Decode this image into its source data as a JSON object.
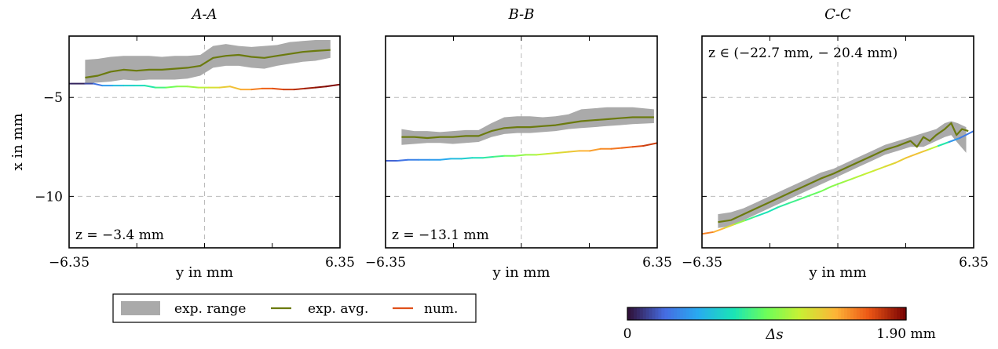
{
  "chart_data": [
    {
      "type": "line",
      "title": "A-A",
      "xlabel": "y in mm",
      "ylabel": "x in mm",
      "annotation": "z = −3.4 mm",
      "xlim": [
        -6.35,
        6.35
      ],
      "ylim": [
        -12.6,
        -1.9
      ],
      "xticks": [
        -6.35,
        6.35
      ],
      "xtick_labels": [
        "−6.35",
        "6.35"
      ],
      "yticks": [
        -5,
        -10
      ],
      "ytick_labels": [
        "−5",
        "−10"
      ],
      "grid": true,
      "series": [
        {
          "name": "exp. range",
          "kind": "band",
          "color": "#aaaaaa",
          "x": [
            -5.6,
            -5.0,
            -4.4,
            -3.8,
            -3.2,
            -2.6,
            -2.0,
            -1.4,
            -0.8,
            -0.2,
            0.4,
            1.0,
            1.6,
            2.2,
            2.8,
            3.4,
            4.0,
            4.6,
            5.2,
            5.9
          ],
          "upper": [
            -3.1,
            -3.05,
            -2.95,
            -2.9,
            -2.9,
            -2.9,
            -2.95,
            -2.9,
            -2.9,
            -2.85,
            -2.4,
            -2.3,
            -2.4,
            -2.45,
            -2.4,
            -2.35,
            -2.2,
            -2.15,
            -2.1,
            -2.1
          ],
          "lower": [
            -4.3,
            -4.25,
            -4.2,
            -4.1,
            -4.15,
            -4.1,
            -4.1,
            -4.1,
            -4.05,
            -3.9,
            -3.5,
            -3.4,
            -3.4,
            -3.5,
            -3.55,
            -3.4,
            -3.3,
            -3.2,
            -3.15,
            -3.0
          ]
        },
        {
          "name": "exp. avg.",
          "kind": "line",
          "color": "#6b7a0e",
          "x": [
            -5.6,
            -5.0,
            -4.4,
            -3.8,
            -3.2,
            -2.6,
            -2.0,
            -1.4,
            -0.8,
            -0.2,
            0.4,
            1.0,
            1.6,
            2.2,
            2.8,
            3.4,
            4.0,
            4.6,
            5.2,
            5.9
          ],
          "y": [
            -4.0,
            -3.9,
            -3.7,
            -3.6,
            -3.65,
            -3.6,
            -3.6,
            -3.55,
            -3.5,
            -3.4,
            -3.0,
            -2.9,
            -2.85,
            -2.95,
            -3.0,
            -2.9,
            -2.8,
            -2.7,
            -2.65,
            -2.6
          ]
        },
        {
          "name": "num.",
          "kind": "colored",
          "x": [
            -6.35,
            -5.6,
            -5.2,
            -4.8,
            -4.3,
            -3.8,
            -3.3,
            -2.8,
            -2.3,
            -1.8,
            -1.3,
            -0.8,
            -0.3,
            0.2,
            0.7,
            1.2,
            1.7,
            2.2,
            2.7,
            3.2,
            3.7,
            4.2,
            4.7,
            5.2,
            5.7,
            6.35
          ],
          "y": [
            -4.3,
            -4.3,
            -4.3,
            -4.4,
            -4.4,
            -4.4,
            -4.4,
            -4.4,
            -4.5,
            -4.5,
            -4.45,
            -4.45,
            -4.5,
            -4.5,
            -4.5,
            -4.45,
            -4.6,
            -4.6,
            -4.55,
            -4.55,
            -4.6,
            -4.6,
            -4.55,
            -4.5,
            -4.45,
            -4.35
          ],
          "s": [
            0.0,
            0.1,
            0.2,
            0.35,
            0.5,
            0.6,
            0.65,
            0.7,
            0.8,
            0.9,
            1.0,
            1.05,
            1.1,
            1.2,
            1.3,
            1.35,
            1.4,
            1.5,
            1.6,
            1.65,
            1.7,
            1.75,
            1.8,
            1.85,
            1.88,
            1.9
          ]
        }
      ]
    },
    {
      "type": "line",
      "title": "B-B",
      "xlabel": "y in mm",
      "ylabel": "",
      "annotation": "z = −13.1 mm",
      "xlim": [
        -6.35,
        6.35
      ],
      "ylim": [
        -12.6,
        -1.9
      ],
      "xticks": [
        -6.35,
        6.35
      ],
      "xtick_labels": [
        "−6.35",
        "6.35"
      ],
      "yticks": [
        -5,
        -10
      ],
      "ytick_labels": [
        "",
        ""
      ],
      "grid": true,
      "series": [
        {
          "name": "exp. range",
          "kind": "band",
          "color": "#aaaaaa",
          "x": [
            -5.6,
            -5.0,
            -4.4,
            -3.8,
            -3.2,
            -2.6,
            -2.0,
            -1.4,
            -0.8,
            -0.2,
            0.4,
            1.0,
            1.6,
            2.2,
            2.8,
            3.4,
            4.0,
            4.6,
            5.2,
            6.2
          ],
          "upper": [
            -6.6,
            -6.7,
            -6.7,
            -6.75,
            -6.7,
            -6.65,
            -6.65,
            -6.3,
            -6.0,
            -5.95,
            -5.95,
            -6.0,
            -5.95,
            -5.85,
            -5.6,
            -5.55,
            -5.5,
            -5.5,
            -5.5,
            -5.6
          ],
          "lower": [
            -7.4,
            -7.35,
            -7.3,
            -7.3,
            -7.35,
            -7.3,
            -7.25,
            -7.0,
            -6.85,
            -6.8,
            -6.8,
            -6.75,
            -6.7,
            -6.6,
            -6.55,
            -6.5,
            -6.45,
            -6.4,
            -6.35,
            -6.3
          ]
        },
        {
          "name": "exp. avg.",
          "kind": "line",
          "color": "#6b7a0e",
          "x": [
            -5.6,
            -5.0,
            -4.4,
            -3.8,
            -3.2,
            -2.6,
            -2.0,
            -1.4,
            -0.8,
            -0.2,
            0.4,
            1.0,
            1.6,
            2.2,
            2.8,
            3.4,
            4.0,
            4.6,
            5.2,
            6.2
          ],
          "y": [
            -7.0,
            -7.0,
            -7.05,
            -7.0,
            -7.0,
            -6.95,
            -6.95,
            -6.7,
            -6.55,
            -6.5,
            -6.5,
            -6.45,
            -6.4,
            -6.3,
            -6.2,
            -6.15,
            -6.1,
            -6.05,
            -6.0,
            -6.0
          ]
        },
        {
          "name": "num.",
          "kind": "colored",
          "x": [
            -6.35,
            -5.8,
            -5.3,
            -4.8,
            -4.3,
            -3.8,
            -3.3,
            -2.8,
            -2.3,
            -1.8,
            -1.3,
            -0.8,
            -0.3,
            0.2,
            0.7,
            1.2,
            1.7,
            2.2,
            2.7,
            3.2,
            3.7,
            4.2,
            4.7,
            5.2,
            5.7,
            6.35
          ],
          "y": [
            -8.2,
            -8.2,
            -8.15,
            -8.15,
            -8.15,
            -8.15,
            -8.1,
            -8.1,
            -8.05,
            -8.05,
            -8.0,
            -7.95,
            -7.95,
            -7.9,
            -7.9,
            -7.85,
            -7.8,
            -7.75,
            -7.7,
            -7.7,
            -7.6,
            -7.6,
            -7.55,
            -7.5,
            -7.45,
            -7.3
          ],
          "s": [
            0.2,
            0.25,
            0.3,
            0.35,
            0.4,
            0.45,
            0.5,
            0.6,
            0.65,
            0.75,
            0.8,
            0.9,
            1.0,
            1.05,
            1.1,
            1.2,
            1.25,
            1.3,
            1.4,
            1.45,
            1.5,
            1.55,
            1.6,
            1.65,
            1.7,
            1.75
          ]
        }
      ]
    },
    {
      "type": "line",
      "title": "C-C",
      "xlabel": "y in mm",
      "ylabel": "",
      "annotation": "z ∈ (−22.7 mm, − 20.4 mm)",
      "xlim": [
        -6.35,
        6.35
      ],
      "ylim": [
        -12.6,
        -1.9
      ],
      "xticks": [
        -6.35,
        6.35
      ],
      "xtick_labels": [
        "−6.35",
        "6.35"
      ],
      "yticks": [
        -5,
        -10
      ],
      "ytick_labels": [
        "",
        ""
      ],
      "grid": true,
      "series": [
        {
          "name": "exp. range",
          "kind": "band",
          "color": "#aaaaaa",
          "x": [
            -5.6,
            -5.0,
            -4.4,
            -3.8,
            -3.2,
            -2.6,
            -2.0,
            -1.4,
            -0.8,
            -0.2,
            0.4,
            1.0,
            1.6,
            2.2,
            2.8,
            3.4,
            4.0,
            4.6,
            5.0,
            5.3,
            5.6,
            6.0
          ],
          "upper": [
            -10.9,
            -10.8,
            -10.6,
            -10.3,
            -10.0,
            -9.7,
            -9.4,
            -9.1,
            -8.8,
            -8.6,
            -8.3,
            -8.0,
            -7.7,
            -7.4,
            -7.2,
            -7.0,
            -6.8,
            -6.6,
            -6.3,
            -6.2,
            -6.3,
            -6.5
          ],
          "lower": [
            -11.6,
            -11.5,
            -11.2,
            -10.9,
            -10.6,
            -10.3,
            -10.0,
            -9.7,
            -9.4,
            -9.1,
            -8.8,
            -8.5,
            -8.2,
            -7.9,
            -7.7,
            -7.5,
            -7.5,
            -7.2,
            -7.0,
            -6.9,
            -7.3,
            -7.8
          ]
        },
        {
          "name": "exp. avg.",
          "kind": "line",
          "color": "#6b7a0e",
          "x": [
            -5.6,
            -5.0,
            -4.4,
            -3.8,
            -3.2,
            -2.6,
            -2.0,
            -1.4,
            -0.8,
            -0.2,
            0.4,
            1.0,
            1.6,
            2.2,
            2.8,
            3.4,
            3.7,
            4.0,
            4.3,
            4.6,
            5.0,
            5.3,
            5.55,
            5.8,
            6.1
          ],
          "y": [
            -11.3,
            -11.2,
            -10.9,
            -10.6,
            -10.3,
            -10.0,
            -9.7,
            -9.4,
            -9.1,
            -8.85,
            -8.55,
            -8.25,
            -7.95,
            -7.65,
            -7.45,
            -7.2,
            -7.5,
            -7.0,
            -7.2,
            -6.9,
            -6.6,
            -6.3,
            -6.9,
            -6.6,
            -6.7
          ]
        },
        {
          "name": "num.",
          "kind": "colored",
          "x": [
            -6.35,
            -5.8,
            -5.3,
            -4.8,
            -4.3,
            -3.8,
            -3.3,
            -2.8,
            -2.3,
            -1.8,
            -1.3,
            -0.8,
            -0.3,
            0.2,
            0.7,
            1.2,
            1.7,
            2.2,
            2.7,
            3.2,
            3.7,
            4.2,
            4.7,
            5.2,
            5.7,
            6.35
          ],
          "y": [
            -11.9,
            -11.8,
            -11.6,
            -11.4,
            -11.2,
            -11.0,
            -10.8,
            -10.55,
            -10.35,
            -10.15,
            -9.95,
            -9.75,
            -9.5,
            -9.3,
            -9.1,
            -8.9,
            -8.7,
            -8.5,
            -8.3,
            -8.05,
            -7.85,
            -7.65,
            -7.45,
            -7.25,
            -7.05,
            -6.7
          ],
          "s": [
            1.6,
            1.5,
            1.35,
            1.2,
            0.9,
            0.75,
            0.7,
            0.75,
            0.8,
            0.85,
            0.9,
            0.95,
            1.0,
            1.05,
            1.1,
            1.15,
            1.2,
            1.25,
            1.3,
            1.35,
            1.4,
            1.3,
            1.0,
            0.5,
            0.3,
            0.3
          ]
        }
      ]
    }
  ],
  "legend": {
    "items": [
      {
        "label": "exp. range",
        "color": "#aaaaaa",
        "kind": "band"
      },
      {
        "label": "exp. avg.",
        "color": "#6b7a0e",
        "kind": "line"
      },
      {
        "label": "num.",
        "color": "#e0501a",
        "kind": "line"
      }
    ]
  },
  "colorbar": {
    "min_label": "0",
    "max_label": "1.90 mm",
    "label": "Δs",
    "min": 0,
    "max": 1.9,
    "colormap": "turbo"
  }
}
